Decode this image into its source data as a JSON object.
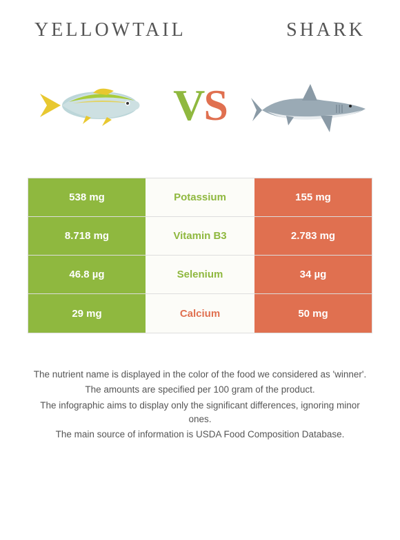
{
  "header": {
    "left_title": "Yellowtail",
    "right_title": "Shark"
  },
  "vs": {
    "v": "V",
    "s": "S"
  },
  "colors": {
    "left": "#8fb83f",
    "right": "#e07050",
    "border": "#dddddd",
    "row_bg": "#fcfcf8",
    "text": "#555555"
  },
  "nutrients": [
    {
      "name": "Potassium",
      "left": "538 mg",
      "right": "155 mg",
      "winner": "left"
    },
    {
      "name": "Vitamin B3",
      "left": "8.718 mg",
      "right": "2.783 mg",
      "winner": "left"
    },
    {
      "name": "Selenium",
      "left": "46.8 µg",
      "right": "34 µg",
      "winner": "left"
    },
    {
      "name": "Calcium",
      "left": "29 mg",
      "right": "50 mg",
      "winner": "right"
    }
  ],
  "footnotes": [
    "The nutrient name is displayed in the color of the food we considered as 'winner'.",
    "The amounts are specified per 100 gram of the product.",
    "The infographic aims to display only the significant differences, ignoring minor ones.",
    "The main source of information is USDA Food Composition Database."
  ]
}
